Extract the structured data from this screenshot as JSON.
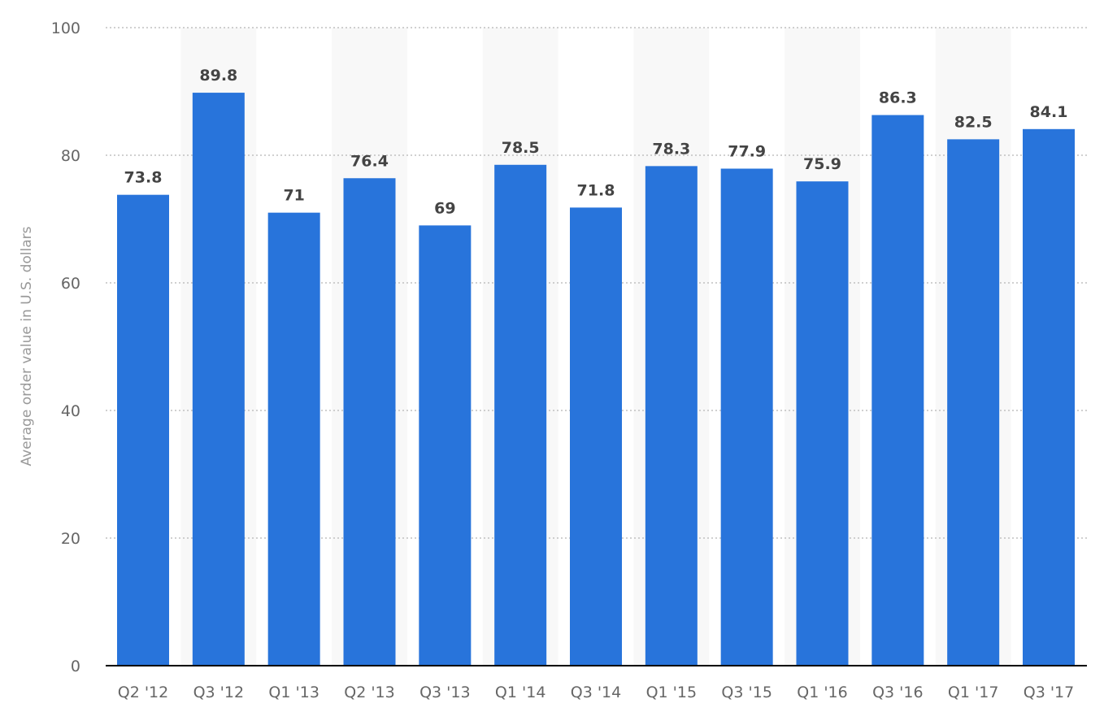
{
  "chart_data": {
    "type": "bar",
    "categories": [
      "Q2 '12",
      "Q3 '12",
      "Q1 '13",
      "Q2 '13",
      "Q3 '13",
      "Q1 '14",
      "Q3 '14",
      "Q1 '15",
      "Q3 '15",
      "Q1 '16",
      "Q3 '16",
      "Q1 '17",
      "Q3 '17"
    ],
    "values": [
      73.8,
      89.8,
      71,
      76.4,
      69,
      78.5,
      71.8,
      78.3,
      77.9,
      75.9,
      86.3,
      82.5,
      84.1
    ],
    "value_labels": [
      "73.8",
      "89.8",
      "71",
      "76.4",
      "69",
      "78.5",
      "71.8",
      "78.3",
      "77.9",
      "75.9",
      "86.3",
      "82.5",
      "84.1"
    ],
    "ylabel": "Average order value in U.S. dollars",
    "xlabel": "",
    "ylim": [
      0,
      100
    ],
    "yticks": [
      0,
      20,
      40,
      60,
      80,
      100
    ],
    "grid": true,
    "bar_color": "#2874db",
    "band_color": "#f8f8f8"
  }
}
